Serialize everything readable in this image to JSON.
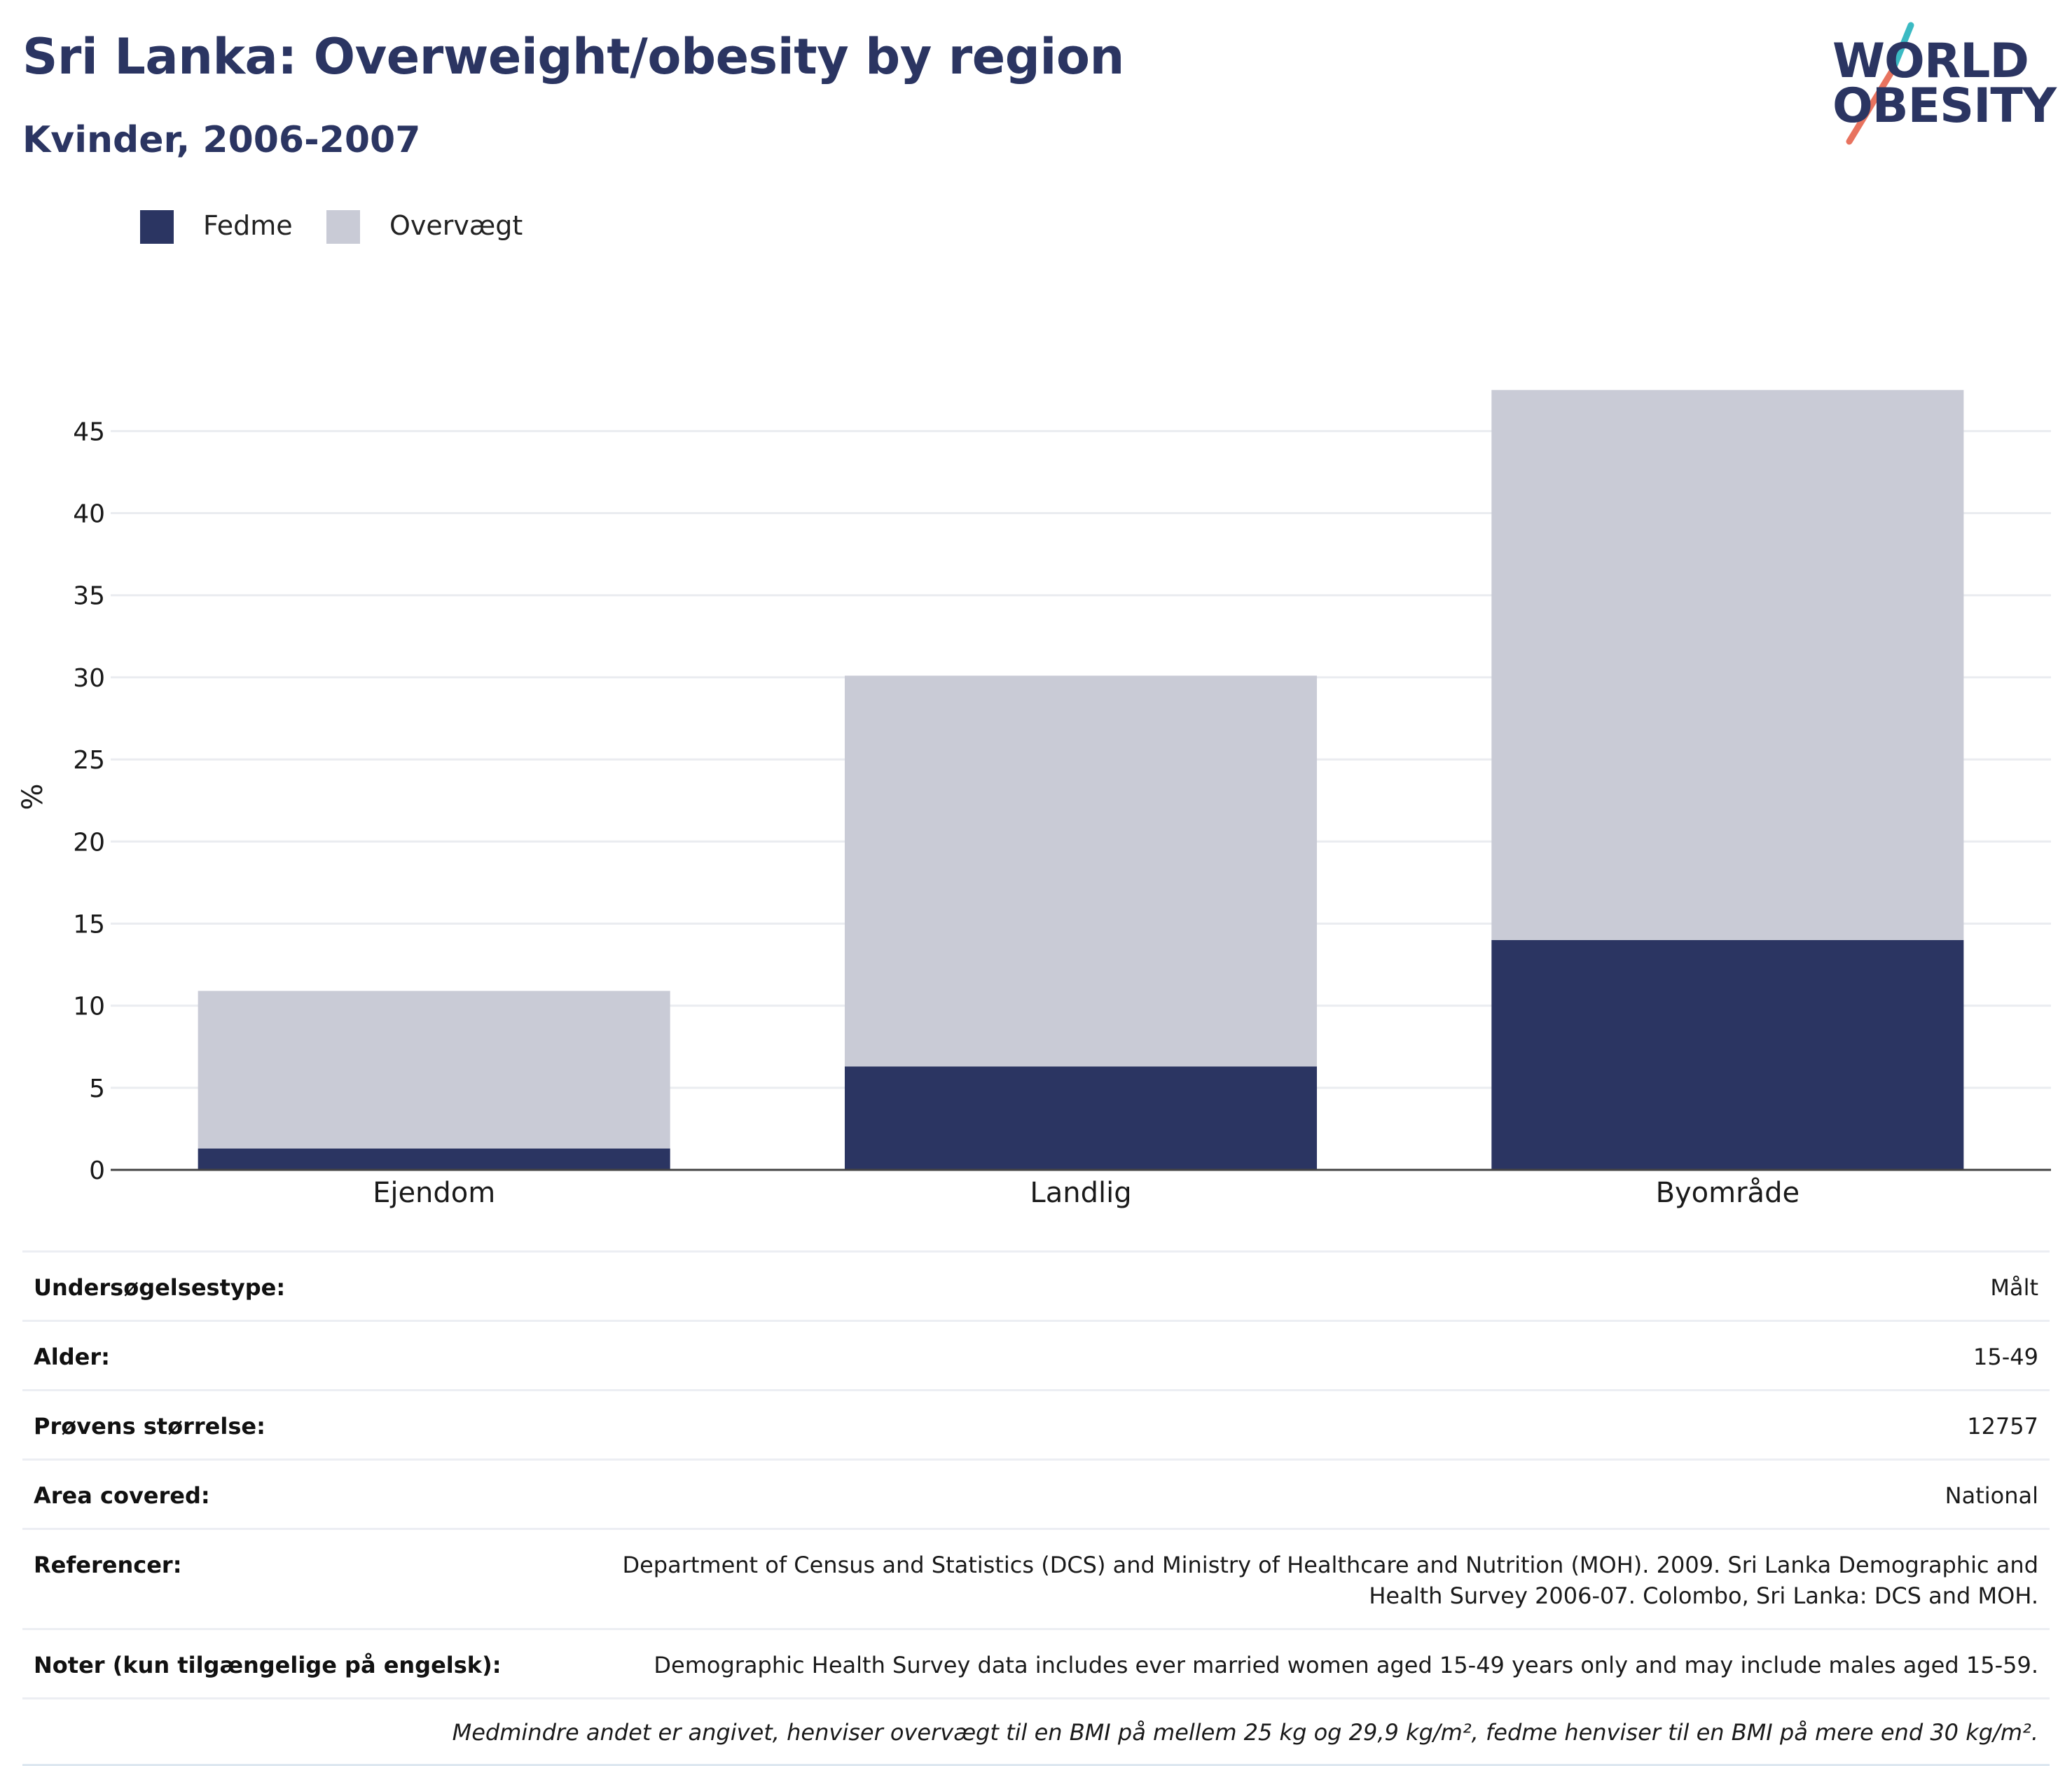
{
  "header": {
    "title": "Sri Lanka: Overweight/obesity by region",
    "subtitle": "Kvinder, 2006-2007"
  },
  "logo": {
    "line1": "WORLD",
    "line2": "OBESITY",
    "colors": {
      "text": "#2b3562",
      "slash_top": "#3bbac3",
      "slash_bottom": "#e8735f"
    }
  },
  "legend": [
    {
      "label": "Fedme",
      "color": "#2b3562"
    },
    {
      "label": "Overvægt",
      "color": "#c9cbd6"
    }
  ],
  "chart_data": {
    "type": "bar",
    "stacked": true,
    "categories": [
      "Ejendom",
      "Landlig",
      "Byområde"
    ],
    "series": [
      {
        "name": "Fedme",
        "color": "#2b3562",
        "values": [
          1.3,
          6.3,
          14.0
        ]
      },
      {
        "name": "Overvægt",
        "color": "#c9cbd6",
        "values": [
          9.6,
          23.8,
          33.5
        ]
      }
    ],
    "ylabel": "%",
    "ylim": [
      0,
      48
    ],
    "yticks": [
      0,
      5,
      10,
      15,
      20,
      25,
      30,
      35,
      40,
      45
    ],
    "grid": true,
    "legend_position": "top-left"
  },
  "info": {
    "rows": [
      {
        "key": "Undersøgelsestype:",
        "value": "Målt"
      },
      {
        "key": "Alder:",
        "value": "15-49"
      },
      {
        "key": "Prøvens størrelse:",
        "value": "12757"
      },
      {
        "key": "Area covered:",
        "value": "National"
      },
      {
        "key": "Referencer:",
        "value": "Department of Census and Statistics (DCS) and Ministry of Healthcare and Nutrition (MOH). 2009. Sri Lanka Demographic and Health Survey 2006-07. Colombo, Sri Lanka: DCS and MOH."
      },
      {
        "key": "Noter (kun tilgængelige på engelsk):",
        "value": "Demographic Health Survey data includes ever married women aged 15-49 years only and may include males aged 15-59."
      }
    ],
    "footnote": "Medmindre andet er angivet, henviser overvægt til en BMI på mellem 25 kg og 29,9 kg/m², fedme henviser til en BMI på mere end 30 kg/m²."
  }
}
